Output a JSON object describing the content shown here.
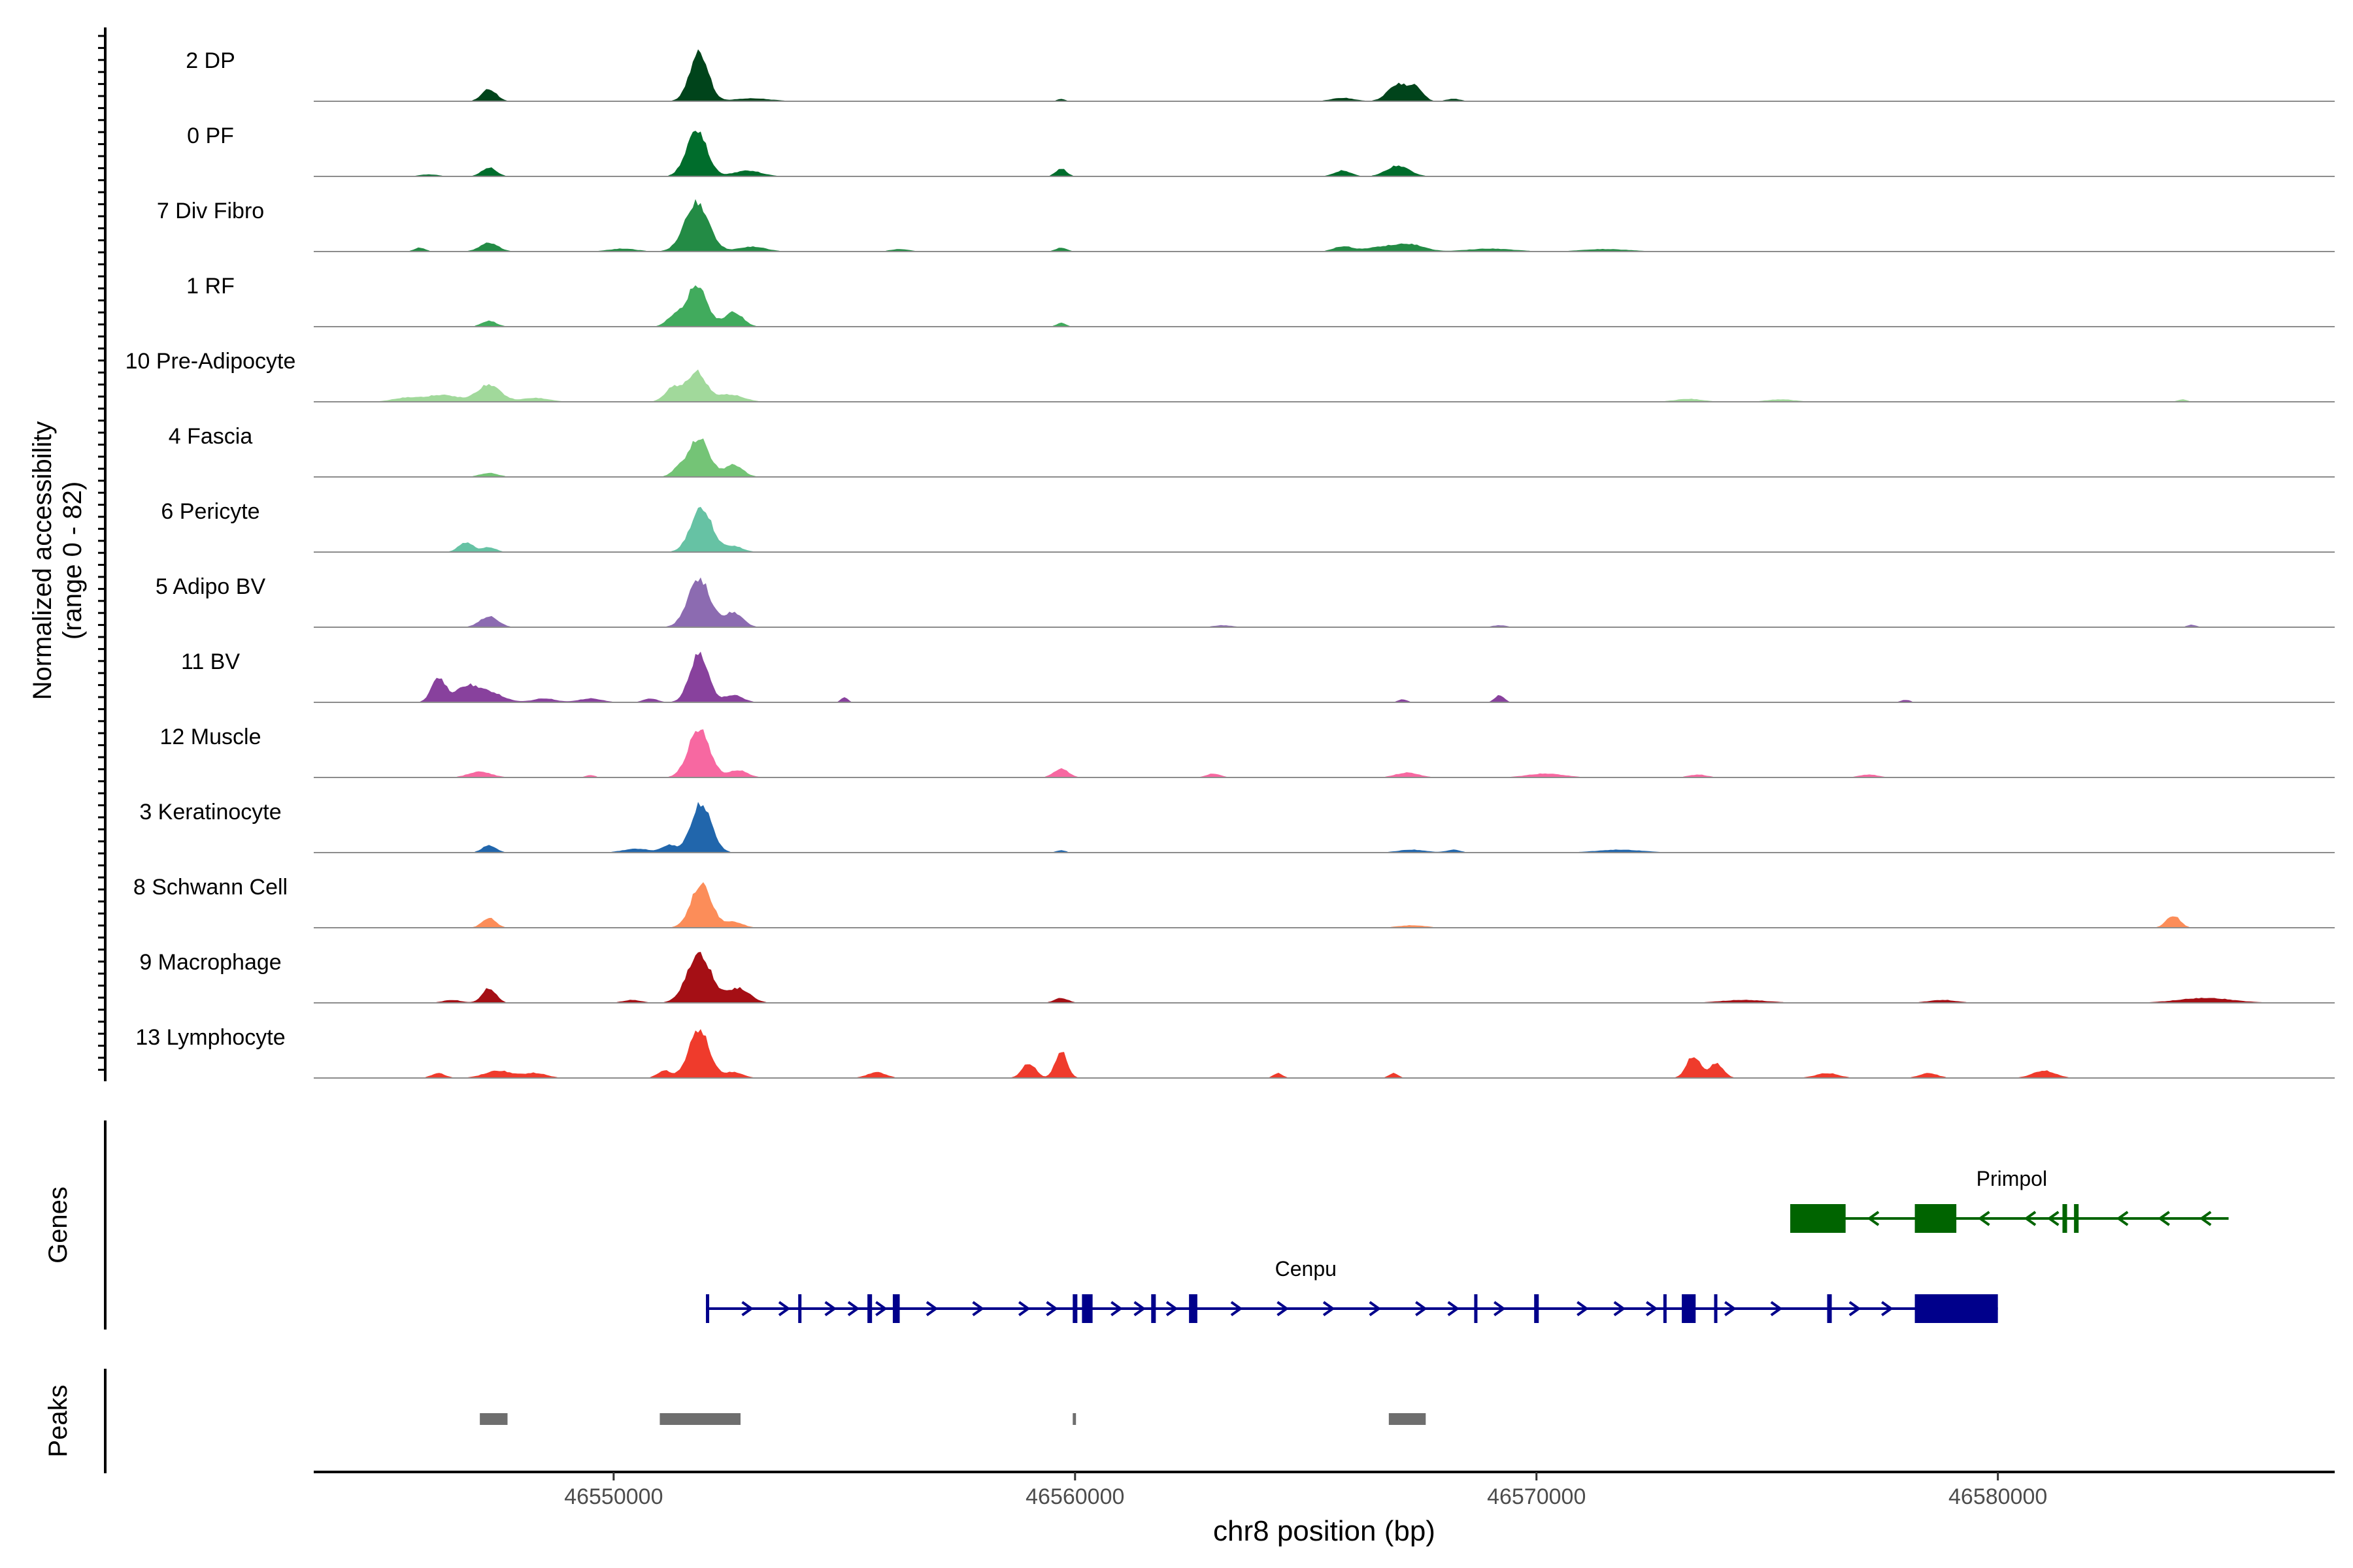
{
  "chart_data": {
    "type": "area",
    "chromosome": "chr8",
    "xlabel": "chr8 position (bp)",
    "xlim": [
      46543500,
      46587300
    ],
    "xticks": [
      46550000,
      46560000,
      46570000,
      46580000
    ],
    "xtick_labels": [
      "46550000",
      "46560000",
      "46570000",
      "46580000"
    ],
    "coverage_ylabel_line1": "Normalized accessibility",
    "coverage_ylabel_line2": "(range 0 - 82)",
    "ylim": [
      0,
      82
    ],
    "tracks": [
      {
        "name": "2 DP",
        "color": "#00441b",
        "peaks": [
          [
            46547300,
            0.25,
            160
          ],
          [
            46551850,
            1.0,
            200
          ],
          [
            46553000,
            0.06,
            400
          ],
          [
            46559700,
            0.05,
            80
          ],
          [
            46565800,
            0.07,
            250
          ],
          [
            46567000,
            0.35,
            220
          ],
          [
            46567400,
            0.25,
            150
          ],
          [
            46568200,
            0.05,
            150
          ]
        ]
      },
      {
        "name": "0 PF",
        "color": "#006d2c",
        "peaks": [
          [
            46546000,
            0.04,
            200
          ],
          [
            46547300,
            0.18,
            160
          ],
          [
            46551800,
            0.95,
            220
          ],
          [
            46552900,
            0.12,
            300
          ],
          [
            46559700,
            0.16,
            120
          ],
          [
            46565800,
            0.12,
            180
          ],
          [
            46567000,
            0.22,
            250
          ]
        ]
      },
      {
        "name": "7 Div Fibro",
        "color": "#238b45",
        "peaks": [
          [
            46545800,
            0.08,
            120
          ],
          [
            46547300,
            0.18,
            200
          ],
          [
            46550200,
            0.06,
            300
          ],
          [
            46551800,
            1.0,
            260
          ],
          [
            46553000,
            0.1,
            300
          ],
          [
            46556200,
            0.05,
            200
          ],
          [
            46559700,
            0.08,
            120
          ],
          [
            46565800,
            0.1,
            200
          ],
          [
            46566700,
            0.1,
            400
          ],
          [
            46567300,
            0.12,
            300
          ],
          [
            46569000,
            0.06,
            500
          ],
          [
            46571500,
            0.05,
            500
          ]
        ]
      },
      {
        "name": "1 RF",
        "color": "#41ab5d",
        "peaks": [
          [
            46547300,
            0.12,
            160
          ],
          [
            46551300,
            0.2,
            160
          ],
          [
            46551800,
            0.85,
            220
          ],
          [
            46552600,
            0.3,
            200
          ],
          [
            46559700,
            0.08,
            100
          ]
        ]
      },
      {
        "name": "10 Pre-Adipocyte",
        "color": "#a1d99b",
        "peaks": [
          [
            46545500,
            0.08,
            300
          ],
          [
            46546300,
            0.14,
            350
          ],
          [
            46547300,
            0.35,
            250
          ],
          [
            46548300,
            0.08,
            300
          ],
          [
            46551300,
            0.3,
            180
          ],
          [
            46551800,
            0.6,
            200
          ],
          [
            46552500,
            0.15,
            300
          ],
          [
            46573300,
            0.06,
            300
          ],
          [
            46575300,
            0.05,
            300
          ],
          [
            46584000,
            0.05,
            100
          ]
        ]
      },
      {
        "name": "4 Fascia",
        "color": "#74c476",
        "peaks": [
          [
            46547300,
            0.08,
            200
          ],
          [
            46551400,
            0.15,
            150
          ],
          [
            46551850,
            0.8,
            220
          ],
          [
            46552600,
            0.25,
            200
          ]
        ]
      },
      {
        "name": "6 Pericyte",
        "color": "#66c2a4",
        "peaks": [
          [
            46546800,
            0.2,
            160
          ],
          [
            46547300,
            0.1,
            150
          ],
          [
            46551900,
            0.9,
            230
          ],
          [
            46552600,
            0.12,
            200
          ]
        ]
      },
      {
        "name": "5 Adipo BV",
        "color": "#8c6bb1",
        "peaks": [
          [
            46547300,
            0.22,
            200
          ],
          [
            46551850,
            1.0,
            240
          ],
          [
            46552600,
            0.3,
            200
          ],
          [
            46563200,
            0.04,
            200
          ],
          [
            46569200,
            0.04,
            150
          ],
          [
            46584200,
            0.05,
            100
          ]
        ]
      },
      {
        "name": "11 BV",
        "color": "#88419d",
        "peaks": [
          [
            46546200,
            0.5,
            150
          ],
          [
            46546800,
            0.3,
            250
          ],
          [
            46547300,
            0.2,
            300
          ],
          [
            46548500,
            0.08,
            250
          ],
          [
            46549500,
            0.08,
            250
          ],
          [
            46550800,
            0.08,
            150
          ],
          [
            46551850,
            1.0,
            200
          ],
          [
            46552600,
            0.15,
            200
          ],
          [
            46555000,
            0.1,
            80
          ],
          [
            46567100,
            0.06,
            100
          ],
          [
            46569200,
            0.15,
            100
          ],
          [
            46578000,
            0.05,
            100
          ]
        ]
      },
      {
        "name": "12 Muscle",
        "color": "#f768a1",
        "peaks": [
          [
            46547100,
            0.12,
            250
          ],
          [
            46549500,
            0.05,
            100
          ],
          [
            46551850,
            1.0,
            230
          ],
          [
            46552700,
            0.15,
            200
          ],
          [
            46559700,
            0.18,
            160
          ],
          [
            46563000,
            0.08,
            150
          ],
          [
            46567200,
            0.1,
            250
          ],
          [
            46570200,
            0.08,
            400
          ],
          [
            46573500,
            0.06,
            200
          ],
          [
            46577200,
            0.06,
            200
          ]
        ]
      },
      {
        "name": "3 Keratinocyte",
        "color": "#2166ac",
        "peaks": [
          [
            46547300,
            0.15,
            150
          ],
          [
            46550500,
            0.08,
            300
          ],
          [
            46551200,
            0.15,
            150
          ],
          [
            46551900,
            1.0,
            220
          ],
          [
            46559700,
            0.05,
            100
          ],
          [
            46567300,
            0.06,
            300
          ],
          [
            46568200,
            0.06,
            150
          ],
          [
            46571800,
            0.06,
            500
          ]
        ]
      },
      {
        "name": "8 Schwann Cell",
        "color": "#fc8d59",
        "peaks": [
          [
            46547300,
            0.2,
            150
          ],
          [
            46551900,
            0.9,
            220
          ],
          [
            46552600,
            0.12,
            200
          ],
          [
            46567300,
            0.05,
            300
          ],
          [
            46583800,
            0.25,
            150
          ]
        ]
      },
      {
        "name": "9 Macrophage",
        "color": "#a50f15",
        "peaks": [
          [
            46546500,
            0.06,
            200
          ],
          [
            46547300,
            0.3,
            150
          ],
          [
            46550400,
            0.06,
            200
          ],
          [
            46551850,
            1.0,
            260
          ],
          [
            46552700,
            0.3,
            250
          ],
          [
            46559700,
            0.1,
            150
          ],
          [
            46574500,
            0.06,
            500
          ],
          [
            46578800,
            0.06,
            300
          ],
          [
            46584500,
            0.1,
            600
          ]
        ]
      },
      {
        "name": "13 Lymphocyte",
        "color": "#ef3b2c",
        "peaks": [
          [
            46546200,
            0.1,
            150
          ],
          [
            46547500,
            0.15,
            300
          ],
          [
            46548300,
            0.1,
            250
          ],
          [
            46551100,
            0.15,
            150
          ],
          [
            46551850,
            1.0,
            220
          ],
          [
            46552600,
            0.12,
            200
          ],
          [
            46555700,
            0.12,
            200
          ],
          [
            46559000,
            0.3,
            150
          ],
          [
            46559700,
            0.55,
            130
          ],
          [
            46564400,
            0.1,
            100
          ],
          [
            46566900,
            0.1,
            100
          ],
          [
            46573400,
            0.45,
            150
          ],
          [
            46573900,
            0.3,
            150
          ],
          [
            46576300,
            0.1,
            250
          ],
          [
            46578500,
            0.1,
            200
          ],
          [
            46581000,
            0.15,
            250
          ]
        ]
      }
    ],
    "genes_label": "Genes",
    "genes": [
      {
        "name": "Primpol",
        "strand": "-",
        "color": "#006400",
        "start": 46575500,
        "end": 46585000,
        "exons": [
          [
            46575500,
            46576700
          ],
          [
            46578200,
            46579100
          ],
          [
            46581400,
            46581500
          ],
          [
            46581650,
            46581750
          ]
        ],
        "arrows": [
          46577300,
          46579700,
          46580700,
          46581200,
          46582700,
          46583600,
          46584500
        ]
      },
      {
        "name": "Cenpu",
        "strand": "+",
        "color": "#00008b",
        "start": 46552000,
        "end": 46580000,
        "exons": [
          [
            46552000,
            46552060
          ],
          [
            46554000,
            46554060
          ],
          [
            46555500,
            46555600
          ],
          [
            46556050,
            46556200
          ],
          [
            46559950,
            46560050
          ],
          [
            46560150,
            46560380
          ],
          [
            46561650,
            46561750
          ],
          [
            46562470,
            46562650
          ],
          [
            46568650,
            46568720
          ],
          [
            46569950,
            46570050
          ],
          [
            46572750,
            46572800
          ],
          [
            46573150,
            46573450
          ],
          [
            46573850,
            46573910
          ],
          [
            46576300,
            46576400
          ],
          [
            46578200,
            46580000
          ]
        ],
        "arrows": [
          46552900,
          46553700,
          46554700,
          46555200,
          46555800,
          46556900,
          46557900,
          46558900,
          46559500,
          46560900,
          46561400,
          46562100,
          46563500,
          46564500,
          46565500,
          46566500,
          46567500,
          46568200,
          46569200,
          46571000,
          46571800,
          46572500,
          46574200,
          46575200,
          46576900,
          46577600
        ]
      }
    ],
    "peaks_label": "Peaks",
    "peak_regions": [
      [
        46547100,
        46547700
      ],
      [
        46551000,
        46552750
      ],
      [
        46559950,
        46560020
      ],
      [
        46566800,
        46567600
      ]
    ]
  }
}
